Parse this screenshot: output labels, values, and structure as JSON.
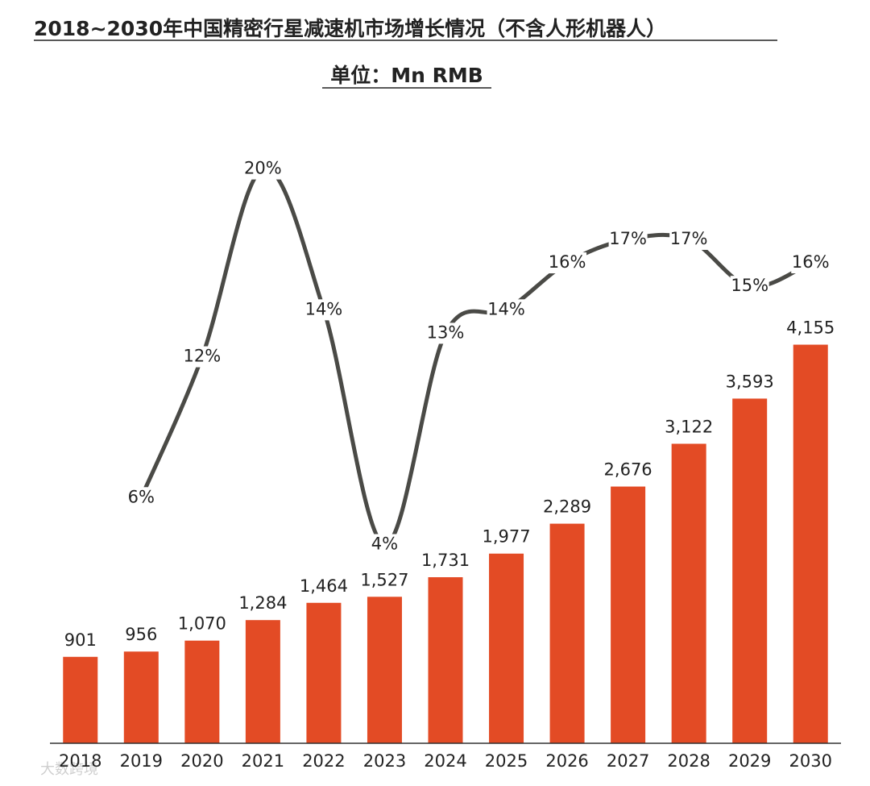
{
  "chart_data": {
    "type": "bar-line",
    "title": "2018~2030年中国精密行星减速机市场增长情况（不含人形机器人）",
    "subtitle": "单位：Mn RMB",
    "watermark": "大数跨境",
    "categories": [
      "2018",
      "2019",
      "2020",
      "2021",
      "2022",
      "2023",
      "2024",
      "2025",
      "2026",
      "2027",
      "2028",
      "2029",
      "2030"
    ],
    "series": [
      {
        "type": "bar",
        "color": "#e34b25",
        "values": [
          901,
          956,
          1070,
          1284,
          1464,
          1527,
          1731,
          1977,
          2289,
          2676,
          3122,
          3593,
          4155
        ],
        "value_labels": [
          "901",
          "956",
          "1,070",
          "1,284",
          "1,464",
          "1,527",
          "1,731",
          "1,977",
          "2,289",
          "2,676",
          "3,122",
          "3,593",
          "4,155"
        ]
      },
      {
        "type": "line",
        "color": "#4a4a46",
        "axis": "y2",
        "values": [
          null,
          6,
          12,
          20,
          14,
          4,
          13,
          14,
          16,
          17,
          17,
          15,
          16
        ],
        "value_labels": [
          null,
          "6%",
          "12%",
          "20%",
          "14%",
          "4%",
          "13%",
          "14%",
          "16%",
          "17%",
          "17%",
          "15%",
          "16%"
        ]
      }
    ],
    "ylim": [
      0,
      5000
    ],
    "y2lim": [
      0,
      25
    ]
  }
}
